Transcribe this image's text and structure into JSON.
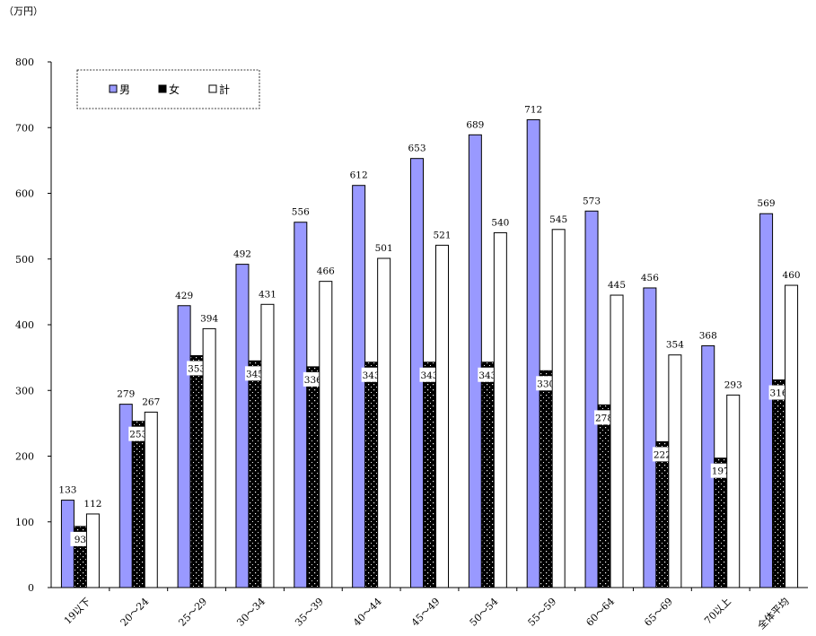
{
  "chart_data": {
    "type": "bar",
    "unit_label": "（万円）",
    "categories": [
      "19以下",
      "20～24",
      "25～29",
      "30～34",
      "35～39",
      "40～44",
      "45～49",
      "50～54",
      "55～59",
      "60～64",
      "65～69",
      "70以上",
      "全体平均"
    ],
    "series": [
      {
        "name": "男",
        "values": [
          133,
          279,
          429,
          492,
          556,
          612,
          653,
          689,
          712,
          573,
          456,
          368,
          569
        ],
        "color": "#9999ff"
      },
      {
        "name": "女",
        "values": [
          93,
          253,
          353,
          345,
          336,
          343,
          343,
          343,
          330,
          278,
          222,
          197,
          316
        ],
        "color": "#000000"
      },
      {
        "name": "計",
        "values": [
          112,
          267,
          394,
          431,
          466,
          501,
          521,
          540,
          545,
          445,
          354,
          293,
          460
        ],
        "color": "#ffffff"
      }
    ],
    "ylim": [
      0,
      800
    ],
    "yticks": [
      0,
      100,
      200,
      300,
      400,
      500,
      600,
      700,
      800
    ],
    "legend_position": "top-left",
    "grid": false
  }
}
